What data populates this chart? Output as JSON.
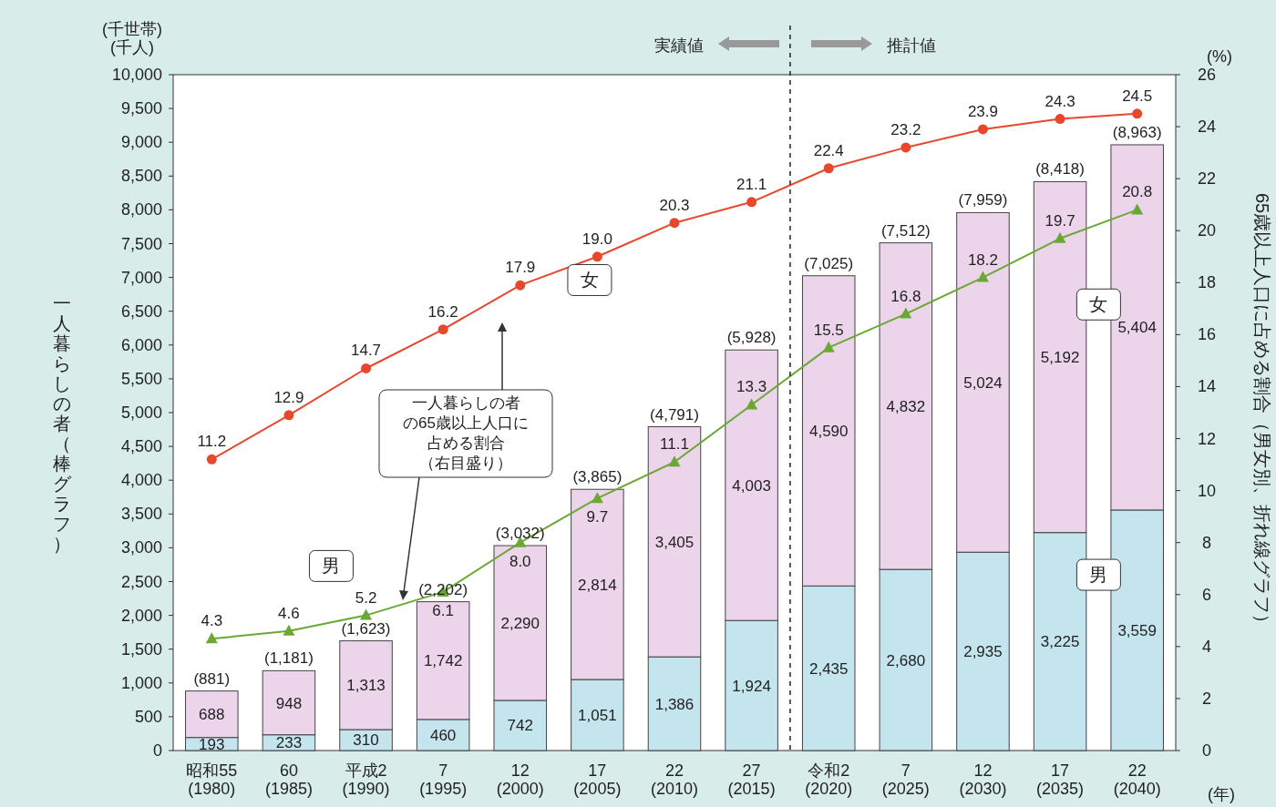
{
  "chart_data": {
    "type": "bar",
    "stacked": true,
    "ylabel": "一人暮らしの者（棒グラフ）",
    "y2label": "65歳以上人口に占める割合（男女別、折れ線グラフ）",
    "categories": [
      "昭和55\n(1980)",
      "60\n(1985)",
      "平成2\n(1990)",
      "7\n(1995)",
      "12\n(2000)",
      "17\n(2005)",
      "22\n(2010)",
      "27\n(2015)",
      "令和2\n(2020)",
      "7\n(2025)",
      "12\n(2030)",
      "17\n(2035)",
      "22\n(2040)"
    ],
    "series": [
      {
        "name": "男",
        "color": "#c4e4ee",
        "values": [
          193,
          233,
          310,
          460,
          742,
          1051,
          1386,
          1924,
          2435,
          2680,
          2935,
          3225,
          3559
        ],
        "value_labels": [
          "193",
          "233",
          "310",
          "460",
          "742",
          "1,051",
          "1,386",
          "1,924",
          "2,435",
          "2,680",
          "2,935",
          "3,225",
          "3,559"
        ]
      },
      {
        "name": "女",
        "color": "#ecd4ea",
        "values": [
          688,
          948,
          1313,
          1742,
          2290,
          2814,
          3405,
          4003,
          4590,
          4832,
          5024,
          5192,
          5404
        ],
        "value_labels": [
          "688",
          "948",
          "1,313",
          "1,742",
          "2,290",
          "2,814",
          "3,405",
          "4,003",
          "4,590",
          "4,832",
          "5,024",
          "5,192",
          "5,404"
        ]
      },
      {
        "name": "女",
        "type": "line",
        "axis": "y2",
        "marker": "circle",
        "color": "#e8472b",
        "values": [
          11.2,
          12.9,
          14.7,
          16.2,
          17.9,
          19.0,
          20.3,
          21.1,
          22.4,
          23.2,
          23.9,
          24.3,
          24.5
        ],
        "value_labels": [
          "11.2",
          "12.9",
          "14.7",
          "16.2",
          "17.9",
          "19.0",
          "20.3",
          "21.1",
          "22.4",
          "23.2",
          "23.9",
          "24.3",
          "24.5"
        ]
      },
      {
        "name": "男",
        "type": "line",
        "axis": "y2",
        "marker": "triangle",
        "color": "#6aa835",
        "values": [
          4.3,
          4.6,
          5.2,
          6.1,
          8.0,
          9.7,
          11.1,
          13.3,
          15.5,
          16.8,
          18.2,
          19.7,
          20.8
        ],
        "value_labels": [
          "4.3",
          "4.6",
          "5.2",
          "6.1",
          "8.0",
          "9.7",
          "11.1",
          "13.3",
          "15.5",
          "16.8",
          "18.2",
          "19.7",
          "20.8"
        ]
      }
    ],
    "totals": [
      "(881)",
      "(1,181)",
      "(1,623)",
      "(2,202)",
      "(3,032)",
      "(3,865)",
      "(4,791)",
      "(5,928)",
      "(7,025)",
      "(7,512)",
      "(7,959)",
      "(8,418)",
      "(8,963)"
    ],
    "ylim": [
      0,
      10000
    ],
    "yticks": [
      0,
      500,
      {
        "value": 1000,
        "label": "1,000"
      },
      {
        "value": 1500,
        "label": "1,500"
      },
      {
        "value": 2000,
        "label": "2,000"
      },
      {
        "value": 2500,
        "label": "2,500"
      },
      {
        "value": 3000,
        "label": "3,000"
      },
      {
        "value": 3500,
        "label": "3,500"
      },
      {
        "value": 4000,
        "label": "4,000"
      },
      {
        "value": 4500,
        "label": "4,500"
      },
      {
        "value": 5000,
        "label": "5,000"
      },
      {
        "value": 5500,
        "label": "5,500"
      },
      {
        "value": 6000,
        "label": "6,000"
      },
      {
        "value": 6500,
        "label": "6,500"
      },
      {
        "value": 7000,
        "label": "7,000"
      },
      {
        "value": 7500,
        "label": "7,500"
      },
      {
        "value": 8000,
        "label": "8,000"
      },
      {
        "value": 8500,
        "label": "8,500"
      },
      {
        "value": 9000,
        "label": "9,000"
      },
      {
        "value": 9500,
        "label": "9,500"
      },
      {
        "value": 10000,
        "label": "10,000"
      }
    ],
    "y2lim": [
      0,
      26
    ],
    "y2ticks": [
      0,
      2,
      4,
      6,
      8,
      10,
      12,
      14,
      16,
      18,
      20,
      22,
      24,
      26
    ],
    "annotations": [
      "(千世帯)\n(千人)",
      "(%)",
      "(年)",
      "実績値",
      "推計値",
      "一人暮らしの者の65歳以上人口に占める割合（右目盛り）"
    ],
    "grid": false
  }
}
